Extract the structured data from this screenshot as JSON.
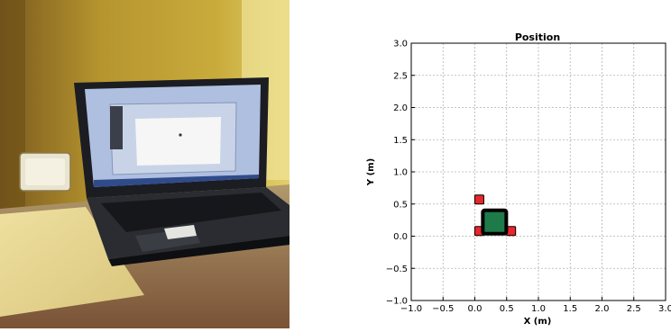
{
  "photo": {
    "description_icon": "laptop-photo"
  },
  "chart_data": {
    "type": "scatter",
    "title": "Position",
    "xlabel": "X (m)",
    "ylabel": "Y (m)",
    "xlim": [
      -1.0,
      3.0
    ],
    "ylim": [
      -1.0,
      3.0
    ],
    "grid": true,
    "xticks": [
      "−1.0",
      "−0.5",
      "0.0",
      "0.5",
      "1.0",
      "1.5",
      "2.0",
      "2.5",
      "3.0"
    ],
    "yticks": [
      "−1.0",
      "−0.5",
      "0.0",
      "0.5",
      "1.0",
      "1.5",
      "2.0",
      "2.5",
      "3.0"
    ],
    "series": [
      {
        "marker": "square-small",
        "color": "#e8262b",
        "points": [
          {
            "x": 0.07,
            "y": 0.57
          },
          {
            "x": 0.07,
            "y": 0.08
          },
          {
            "x": 0.57,
            "y": 0.08
          }
        ]
      },
      {
        "marker": "square-large",
        "color": "#1f7a4a",
        "points": [
          {
            "x": 0.31,
            "y": 0.22
          }
        ]
      }
    ]
  }
}
